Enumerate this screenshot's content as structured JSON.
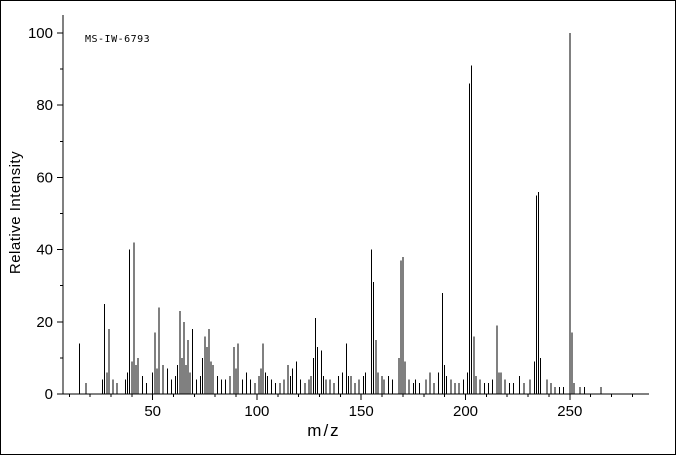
{
  "annotation": "MS-IW-6793",
  "chart_data": {
    "type": "bar",
    "subtype": "mass-spectrum-stick-plot",
    "title": "",
    "xlabel": "m/z",
    "ylabel": "Relative Intensity",
    "xlim": [
      7,
      288
    ],
    "ylim": [
      0,
      105
    ],
    "x_major_ticks": [
      50,
      100,
      150,
      200,
      250
    ],
    "x_minor_ticks_range": [
      10,
      280,
      10
    ],
    "y_major_ticks": [
      0,
      20,
      40,
      60,
      80,
      100
    ],
    "y_minor_ticks_range": [
      0,
      100,
      10
    ],
    "grid": false,
    "legend": false,
    "line_color": "#000000",
    "background_color": "#ffffff",
    "peaks": [
      [
        15,
        14
      ],
      [
        18,
        3
      ],
      [
        26,
        4
      ],
      [
        27,
        25
      ],
      [
        28,
        6
      ],
      [
        29,
        18
      ],
      [
        31,
        4
      ],
      [
        33,
        3
      ],
      [
        37,
        4
      ],
      [
        38,
        6
      ],
      [
        39,
        40
      ],
      [
        40,
        9
      ],
      [
        41,
        42
      ],
      [
        42,
        8
      ],
      [
        43,
        10
      ],
      [
        45,
        5
      ],
      [
        47,
        3
      ],
      [
        50,
        6
      ],
      [
        51,
        17
      ],
      [
        52,
        7
      ],
      [
        53,
        24
      ],
      [
        55,
        8
      ],
      [
        57,
        7
      ],
      [
        59,
        4
      ],
      [
        61,
        5
      ],
      [
        62,
        8
      ],
      [
        63,
        23
      ],
      [
        64,
        10
      ],
      [
        65,
        20
      ],
      [
        66,
        8
      ],
      [
        67,
        15
      ],
      [
        68,
        6
      ],
      [
        69,
        18
      ],
      [
        71,
        4
      ],
      [
        73,
        5
      ],
      [
        74,
        10
      ],
      [
        75,
        16
      ],
      [
        76,
        13
      ],
      [
        77,
        18
      ],
      [
        78,
        9
      ],
      [
        79,
        8
      ],
      [
        81,
        5
      ],
      [
        83,
        4
      ],
      [
        85,
        4
      ],
      [
        87,
        5
      ],
      [
        89,
        13
      ],
      [
        90,
        7
      ],
      [
        91,
        14
      ],
      [
        93,
        4
      ],
      [
        95,
        6
      ],
      [
        97,
        4
      ],
      [
        99,
        3
      ],
      [
        101,
        5
      ],
      [
        102,
        7
      ],
      [
        103,
        14
      ],
      [
        104,
        6
      ],
      [
        105,
        5
      ],
      [
        107,
        4
      ],
      [
        109,
        3
      ],
      [
        111,
        3
      ],
      [
        113,
        4
      ],
      [
        115,
        8
      ],
      [
        116,
        5
      ],
      [
        117,
        7
      ],
      [
        119,
        9
      ],
      [
        121,
        4
      ],
      [
        123,
        3
      ],
      [
        125,
        4
      ],
      [
        126,
        5
      ],
      [
        127,
        10
      ],
      [
        128,
        21
      ],
      [
        129,
        13
      ],
      [
        131,
        12
      ],
      [
        132,
        5
      ],
      [
        133,
        4
      ],
      [
        135,
        4
      ],
      [
        137,
        3
      ],
      [
        139,
        5
      ],
      [
        141,
        6
      ],
      [
        143,
        14
      ],
      [
        144,
        5
      ],
      [
        145,
        5
      ],
      [
        147,
        3
      ],
      [
        149,
        4
      ],
      [
        151,
        5
      ],
      [
        152,
        6
      ],
      [
        155,
        40
      ],
      [
        156,
        31
      ],
      [
        157,
        15
      ],
      [
        158,
        6
      ],
      [
        160,
        5
      ],
      [
        161,
        4
      ],
      [
        163,
        5
      ],
      [
        165,
        4
      ],
      [
        168,
        10
      ],
      [
        169,
        37
      ],
      [
        170,
        38
      ],
      [
        171,
        9
      ],
      [
        173,
        4
      ],
      [
        175,
        3
      ],
      [
        176,
        4
      ],
      [
        178,
        3
      ],
      [
        181,
        4
      ],
      [
        183,
        6
      ],
      [
        185,
        3
      ],
      [
        187,
        6
      ],
      [
        189,
        28
      ],
      [
        190,
        8
      ],
      [
        191,
        5
      ],
      [
        193,
        4
      ],
      [
        195,
        3
      ],
      [
        197,
        3
      ],
      [
        199,
        4
      ],
      [
        201,
        6
      ],
      [
        202,
        86
      ],
      [
        203,
        91
      ],
      [
        204,
        16
      ],
      [
        205,
        5
      ],
      [
        207,
        4
      ],
      [
        209,
        3
      ],
      [
        211,
        3
      ],
      [
        213,
        4
      ],
      [
        215,
        19
      ],
      [
        216,
        6
      ],
      [
        217,
        6
      ],
      [
        219,
        4
      ],
      [
        221,
        3
      ],
      [
        223,
        3
      ],
      [
        226,
        5
      ],
      [
        228,
        3
      ],
      [
        231,
        4
      ],
      [
        233,
        9
      ],
      [
        234,
        55
      ],
      [
        235,
        56
      ],
      [
        236,
        10
      ],
      [
        239,
        4
      ],
      [
        241,
        3
      ],
      [
        243,
        2
      ],
      [
        245,
        2
      ],
      [
        247,
        2
      ],
      [
        250,
        100
      ],
      [
        251,
        17
      ],
      [
        252,
        3
      ],
      [
        255,
        2
      ],
      [
        257,
        2
      ],
      [
        265,
        2
      ]
    ]
  }
}
